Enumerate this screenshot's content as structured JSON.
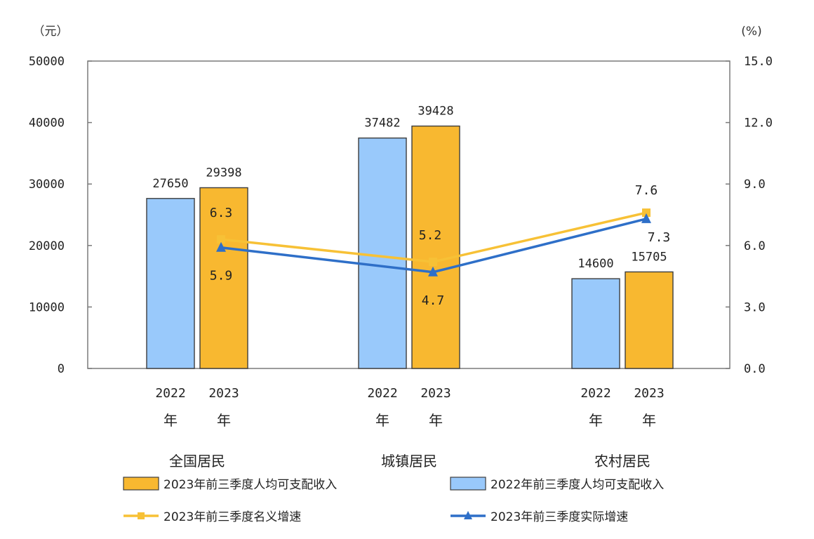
{
  "chart_data": {
    "type": "bar",
    "left_unit": "（元）",
    "right_unit": "(%)",
    "ylim": [
      0,
      50000
    ],
    "y2lim": [
      0,
      15
    ],
    "left_ticks": [
      "0",
      "10000",
      "20000",
      "30000",
      "40000",
      "50000"
    ],
    "right_ticks": [
      "0.0",
      "3.0",
      "6.0",
      "9.0",
      "12.0",
      "15.0"
    ],
    "categories": [
      "全国居民",
      "城镇居民",
      "农村居民"
    ],
    "bar_year_labels": [
      {
        "year": "2022",
        "suffix": "年"
      },
      {
        "year": "2023",
        "suffix": "年"
      }
    ],
    "bar_series": [
      {
        "name": "2022年前三季度人均可支配收入",
        "color": "#99c9fb",
        "values": [
          27650,
          37482,
          14600
        ]
      },
      {
        "name": "2023年前三季度人均可支配收入",
        "color": "#f8b830",
        "values": [
          29398,
          39428,
          15705
        ]
      }
    ],
    "line_series": [
      {
        "name": "2023年前三季度名义增速",
        "color": "#f7c136",
        "marker": "square",
        "values": [
          6.3,
          5.2,
          7.6
        ]
      },
      {
        "name": "2023年前三季度实际增速",
        "color": "#2e6fc8",
        "marker": "triangle",
        "values": [
          5.9,
          4.7,
          7.3
        ]
      }
    ],
    "legend": [
      {
        "label": "2023年前三季度人均可支配收入",
        "kind": "bar",
        "color": "#f8b830"
      },
      {
        "label": "2022年前三季度人均可支配收入",
        "kind": "bar",
        "color": "#99c9fb"
      },
      {
        "label": "2023年前三季度名义增速",
        "kind": "line",
        "color": "#f7c136",
        "marker": "square"
      },
      {
        "label": "2023年前三季度实际增速",
        "kind": "line",
        "color": "#2e6fc8",
        "marker": "triangle"
      }
    ]
  }
}
